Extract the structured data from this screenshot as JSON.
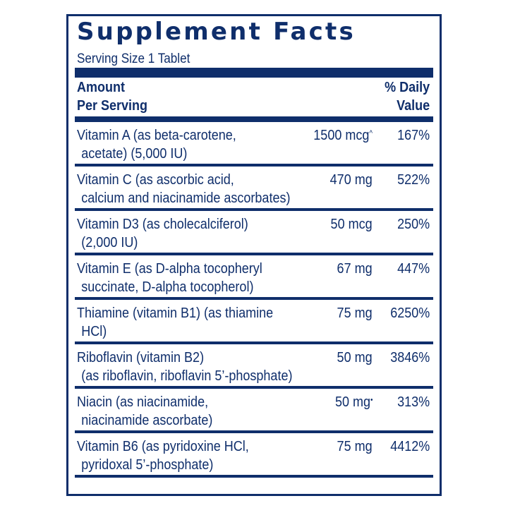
{
  "label": {
    "title": "Supplement Facts",
    "serving_size": "Serving Size 1 Tablet",
    "header": {
      "amount_line1": "Amount",
      "amount_line2": "Per Serving",
      "dv_line1": "% Daily",
      "dv_line2": "Value"
    },
    "colors": {
      "primary": "#0f2e6b",
      "background": "#ffffff"
    },
    "rows": [
      {
        "name_line1": "Vitamin A (as beta-carotene,",
        "name_line2": "acetate) (5,000 IU)",
        "amount": "1500 mcg",
        "mark": "^",
        "dv": "167%"
      },
      {
        "name_line1": "Vitamin C (as ascorbic acid,",
        "name_line2": "calcium and niacinamide ascorbates)",
        "amount": "470 mg",
        "mark": "",
        "dv": "522%"
      },
      {
        "name_line1": "Vitamin D3 (as cholecalciferol)",
        "name_line2": "(2,000 IU)",
        "amount": "50 mcg",
        "mark": "",
        "dv": "250%"
      },
      {
        "name_line1": "Vitamin E (as D-alpha tocopheryl",
        "name_line2": "succinate, D-alpha tocopherol)",
        "amount": "67 mg",
        "mark": "",
        "dv": "447%"
      },
      {
        "name_line1": "Thiamine (vitamin B1) (as thiamine",
        "name_line2": "HCl)",
        "amount": "75 mg",
        "mark": "",
        "dv": "6250%"
      },
      {
        "name_line1": "Riboflavin (vitamin B2)",
        "name_line2": "(as riboflavin, riboflavin 5’-phosphate)",
        "amount": "50 mg",
        "mark": "",
        "dv": "3846%"
      },
      {
        "name_line1": "Niacin (as niacinamide,",
        "name_line2": "niacinamide ascorbate)",
        "amount": "50 mg",
        "mark": "•",
        "dv": "313%"
      },
      {
        "name_line1": "Vitamin B6 (as pyridoxine HCl,",
        "name_line2": "pyridoxal 5’-phosphate)",
        "amount": "75 mg",
        "mark": "",
        "dv": "4412%"
      }
    ]
  }
}
